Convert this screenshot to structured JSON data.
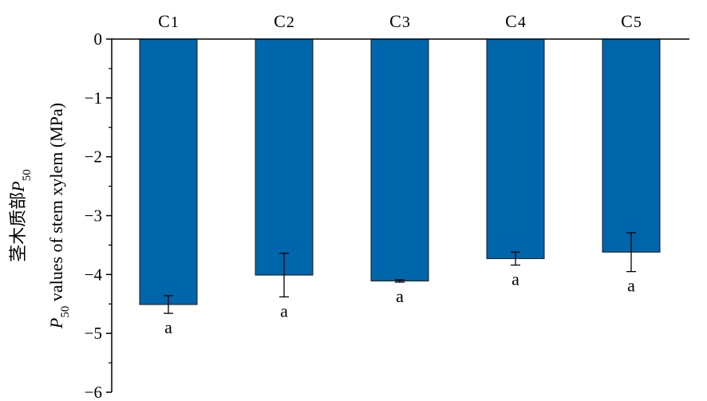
{
  "chart_data": {
    "type": "bar",
    "categories": [
      "C1",
      "C2",
      "C3",
      "C4",
      "C5"
    ],
    "category_labels": [
      {
        "base": "C",
        "sub": "1"
      },
      {
        "base": "C",
        "sub": "2"
      },
      {
        "base": "C",
        "sub": "3"
      },
      {
        "base": "C",
        "sub": "4"
      },
      {
        "base": "C",
        "sub": "5"
      }
    ],
    "values": [
      -4.51,
      -4.01,
      -4.11,
      -3.73,
      -3.62
    ],
    "errors": [
      0.15,
      0.37,
      0.02,
      0.11,
      0.33
    ],
    "significance": [
      "a",
      "a",
      "a",
      "a",
      "a"
    ],
    "ylabel_line1": {
      "cn": "茎木质部",
      "sym": "P",
      "sub": "50"
    },
    "ylabel_line2": {
      "sym": "P",
      "sub": "50",
      "text": " values of stem xylem (MPa)"
    },
    "ylim": [
      -6,
      0
    ],
    "yticks": [
      0,
      -1,
      -2,
      -3,
      -4,
      -5,
      -6
    ],
    "ytick_labels": [
      "0",
      "−1",
      "−2",
      "−3",
      "−4",
      "−5",
      "−6"
    ],
    "xaxis_position": "top",
    "grid": false,
    "bar_color": "#0066AB"
  }
}
